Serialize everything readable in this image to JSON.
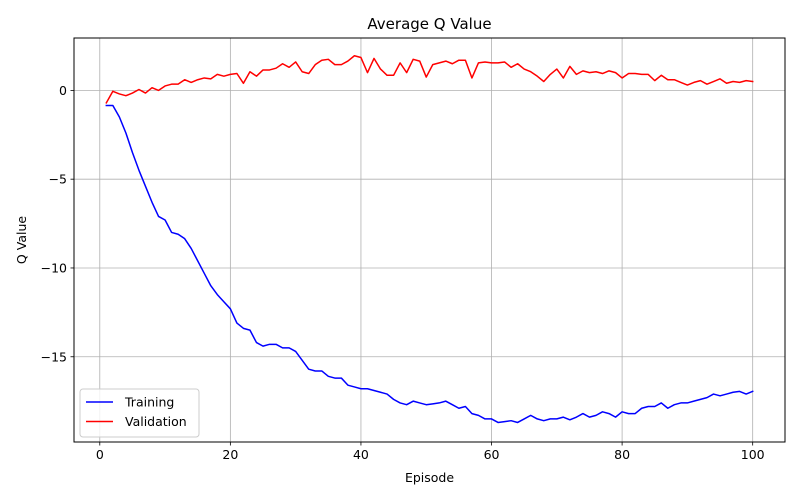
{
  "chart_data": {
    "type": "line",
    "title": "Average Q Value",
    "xlabel": "Episode",
    "ylabel": "Q Value",
    "xlim": [
      -3.95,
      104.95
    ],
    "ylim": [
      -19.8,
      2.95
    ],
    "xticks": [
      0,
      20,
      40,
      60,
      80,
      100
    ],
    "yticks": [
      0,
      -5,
      -10,
      -15
    ],
    "xtick_labels": [
      "0",
      "20",
      "40",
      "60",
      "80",
      "100"
    ],
    "ytick_labels": [
      "0",
      "−5",
      "−10",
      "−15"
    ],
    "grid": true,
    "legend_position": "lower-left",
    "x": [
      1,
      2,
      3,
      4,
      5,
      6,
      7,
      8,
      9,
      10,
      11,
      12,
      13,
      14,
      15,
      16,
      17,
      18,
      19,
      20,
      21,
      22,
      23,
      24,
      25,
      26,
      27,
      28,
      29,
      30,
      31,
      32,
      33,
      34,
      35,
      36,
      37,
      38,
      39,
      40,
      41,
      42,
      43,
      44,
      45,
      46,
      47,
      48,
      49,
      50,
      51,
      52,
      53,
      54,
      55,
      56,
      57,
      58,
      59,
      60,
      61,
      62,
      63,
      64,
      65,
      66,
      67,
      68,
      69,
      70,
      71,
      72,
      73,
      74,
      75,
      76,
      77,
      78,
      79,
      80,
      81,
      82,
      83,
      84,
      85,
      86,
      87,
      88,
      89,
      90,
      91,
      92,
      93,
      94,
      95,
      96,
      97,
      98,
      99,
      100
    ],
    "series": [
      {
        "name": "Training",
        "color": "#0000ff",
        "values": [
          -0.85,
          -0.85,
          -1.5,
          -2.4,
          -3.5,
          -4.5,
          -5.4,
          -6.3,
          -7.1,
          -7.3,
          -8.0,
          -8.1,
          -8.35,
          -8.9,
          -9.6,
          -10.3,
          -11.0,
          -11.5,
          -11.9,
          -12.3,
          -13.1,
          -13.4,
          -13.5,
          -14.2,
          -14.4,
          -14.3,
          -14.3,
          -14.5,
          -14.5,
          -14.7,
          -15.2,
          -15.7,
          -15.8,
          -15.8,
          -16.1,
          -16.2,
          -16.2,
          -16.6,
          -16.7,
          -16.8,
          -16.8,
          -16.9,
          -17.0,
          -17.1,
          -17.4,
          -17.6,
          -17.7,
          -17.5,
          -17.6,
          -17.7,
          -17.65,
          -17.6,
          -17.5,
          -17.7,
          -17.9,
          -17.8,
          -18.2,
          -18.3,
          -18.5,
          -18.5,
          -18.7,
          -18.65,
          -18.6,
          -18.7,
          -18.5,
          -18.3,
          -18.5,
          -18.6,
          -18.5,
          -18.5,
          -18.4,
          -18.55,
          -18.4,
          -18.2,
          -18.4,
          -18.3,
          -18.1,
          -18.2,
          -18.4,
          -18.1,
          -18.2,
          -18.2,
          -17.9,
          -17.8,
          -17.8,
          -17.6,
          -17.9,
          -17.7,
          -17.6,
          -17.6,
          -17.5,
          -17.4,
          -17.3,
          -17.1,
          -17.2,
          -17.1,
          -17.0,
          -16.95,
          -17.1,
          -16.95
        ]
      },
      {
        "name": "Validation",
        "color": "#ff0000",
        "values": [
          -0.7,
          -0.05,
          -0.2,
          -0.3,
          -0.15,
          0.05,
          -0.15,
          0.15,
          0.0,
          0.25,
          0.35,
          0.35,
          0.6,
          0.45,
          0.6,
          0.7,
          0.65,
          0.9,
          0.8,
          0.9,
          0.95,
          0.4,
          1.05,
          0.8,
          1.15,
          1.15,
          1.25,
          1.5,
          1.3,
          1.6,
          1.05,
          0.95,
          1.45,
          1.7,
          1.75,
          1.45,
          1.45,
          1.65,
          1.95,
          1.85,
          1.0,
          1.8,
          1.2,
          0.85,
          0.85,
          1.55,
          1.0,
          1.75,
          1.65,
          0.75,
          1.45,
          1.55,
          1.65,
          1.5,
          1.7,
          1.7,
          0.7,
          1.55,
          1.6,
          1.55,
          1.55,
          1.6,
          1.3,
          1.5,
          1.2,
          1.05,
          0.8,
          0.5,
          0.9,
          1.2,
          0.7,
          1.35,
          0.9,
          1.1,
          1.0,
          1.05,
          0.95,
          1.1,
          1.0,
          0.7,
          0.95,
          0.95,
          0.9,
          0.9,
          0.55,
          0.85,
          0.6,
          0.6,
          0.45,
          0.3,
          0.45,
          0.55,
          0.35,
          0.5,
          0.65,
          0.4,
          0.5,
          0.45,
          0.55,
          0.5
        ]
      }
    ]
  }
}
